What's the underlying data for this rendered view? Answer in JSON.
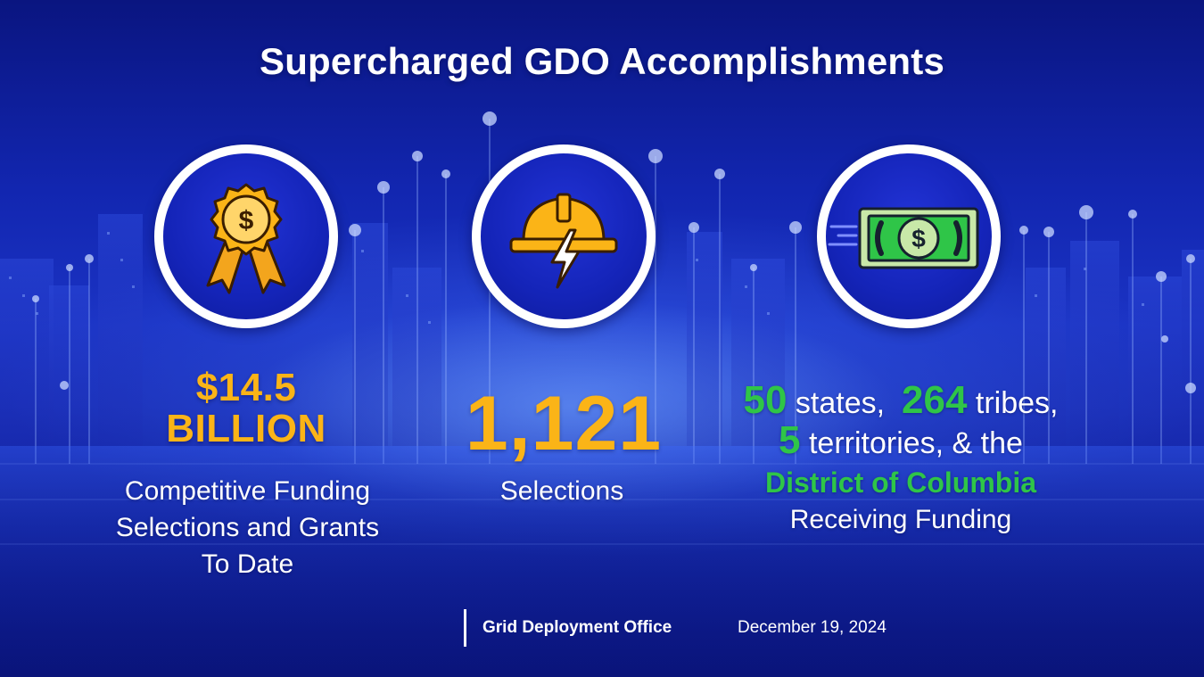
{
  "slide": {
    "title": "Supercharged GDO Accomplishments",
    "stats": [
      {
        "icon": "award-ribbon-dollar-icon",
        "value_line1": "$14.5",
        "value_line2": "BILLION",
        "description_lines": [
          "Competitive Funding",
          "Selections and Grants",
          "To Date"
        ]
      },
      {
        "icon": "hard-hat-lightning-icon",
        "value": "1,121",
        "description": "Selections"
      },
      {
        "icon": "dollar-bill-icon",
        "states_count": "50",
        "states_label": "states,",
        "tribes_count": "264",
        "tribes_label": "tribes,",
        "territories_count": "5",
        "territories_label": "territories, & the",
        "district": "District of Columbia",
        "receiving": "Receiving Funding"
      }
    ],
    "footer": {
      "organization": "Grid Deployment Office",
      "date": "December 19, 2024"
    },
    "colors": {
      "accent_gold": "#fbb417",
      "accent_green": "#2fc548",
      "background": "#1226b0"
    }
  }
}
